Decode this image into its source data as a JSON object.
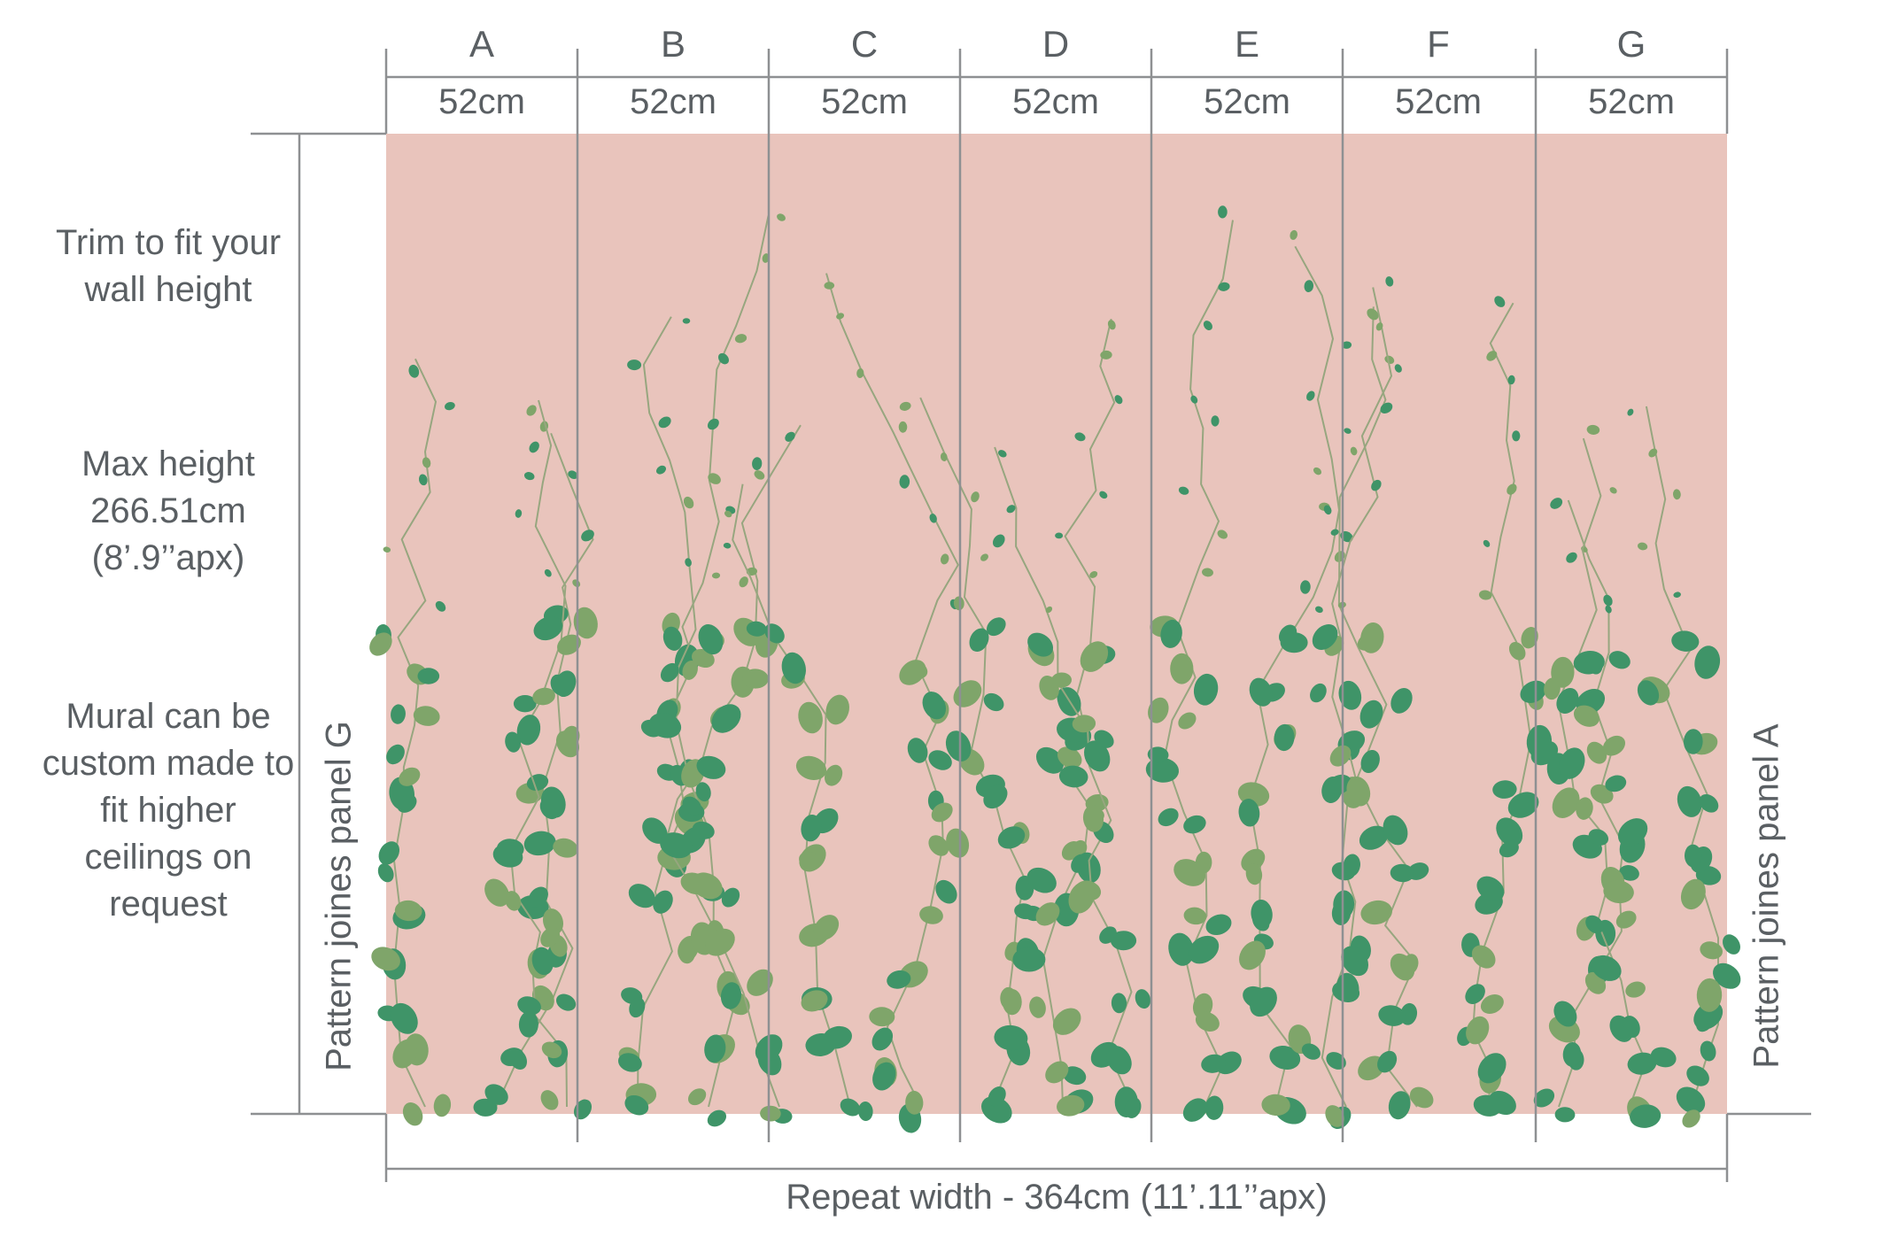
{
  "panels": [
    {
      "letter": "A",
      "width": "52cm"
    },
    {
      "letter": "B",
      "width": "52cm"
    },
    {
      "letter": "C",
      "width": "52cm"
    },
    {
      "letter": "D",
      "width": "52cm"
    },
    {
      "letter": "E",
      "width": "52cm"
    },
    {
      "letter": "F",
      "width": "52cm"
    },
    {
      "letter": "G",
      "width": "52cm"
    }
  ],
  "notes": {
    "trim": "Trim to fit your wall height",
    "max_height_1": "Max height",
    "max_height_2": "266.51cm",
    "max_height_3": "(8’.9’’apx)",
    "custom": "Mural can be custom made to fit higher ceilings on request"
  },
  "pattern_left": "Pattern joines panel G",
  "pattern_right": "Pattern joines panel A",
  "repeat_width": "Repeat width - 364cm  (11’.11’’apx)",
  "colors": {
    "wall": "#e9c4bc",
    "line": "#8e9092",
    "leaf_dark": "#3f9468",
    "leaf_light": "#7fa56a",
    "stem": "#97a67f"
  }
}
